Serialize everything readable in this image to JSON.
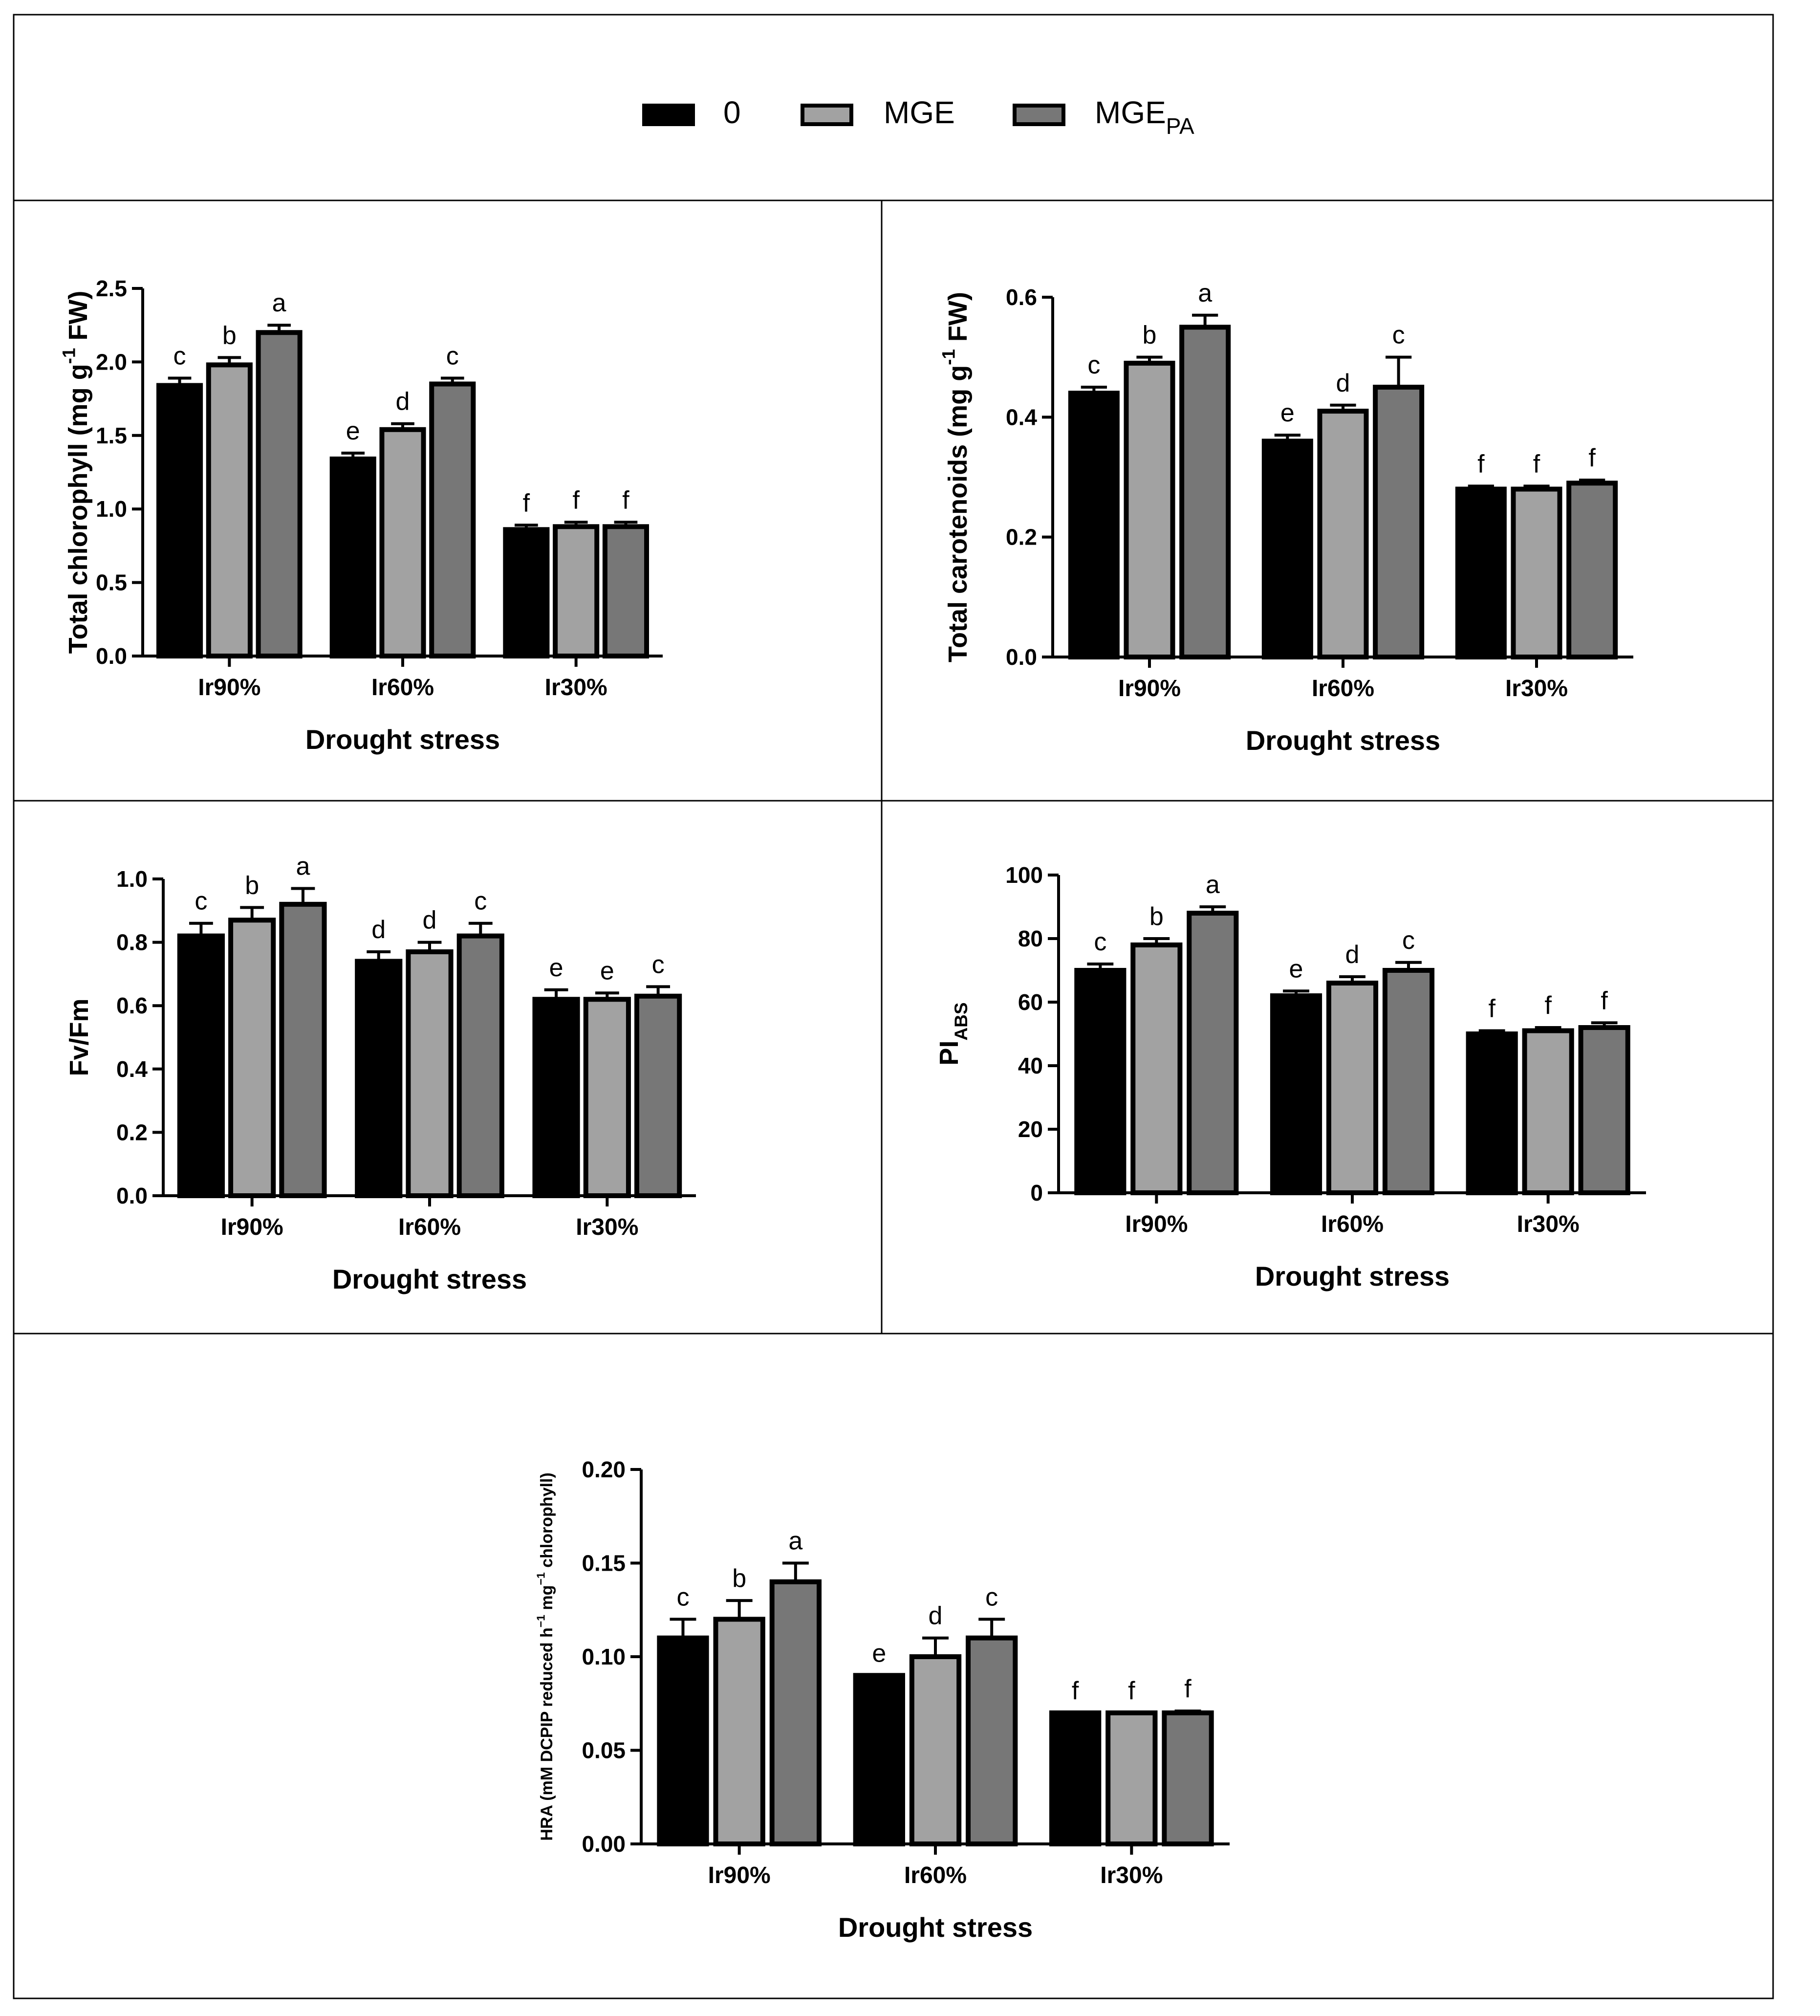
{
  "legend": {
    "items": [
      {
        "label": "0",
        "color": "#000000"
      },
      {
        "label": "MGE",
        "color": "#a2a2a2"
      },
      {
        "label": "MGE",
        "subscript": "PA",
        "color": "#777777"
      }
    ]
  },
  "chart_data": [
    {
      "type": "bar",
      "ylabel_main": "Total chlorophyll (mg g",
      "ylabel_sup": "-1",
      "ylabel_end": " FW)",
      "xlabel": "Drought stress",
      "categories": [
        "Ir90%",
        "Ir60%",
        "Ir30%"
      ],
      "ylim": [
        0,
        2.5
      ],
      "yticks": [
        "0.0",
        "0.5",
        "1.0",
        "1.5",
        "2.0",
        "2.5"
      ],
      "series": [
        {
          "name": "0",
          "values": [
            1.84,
            1.34,
            0.86
          ],
          "errors": [
            0.05,
            0.04,
            0.03
          ],
          "letters": [
            "c",
            "e",
            "f"
          ]
        },
        {
          "name": "MGE",
          "values": [
            1.98,
            1.54,
            0.88
          ],
          "errors": [
            0.05,
            0.04,
            0.03
          ],
          "letters": [
            "b",
            "d",
            "f"
          ]
        },
        {
          "name": "MGE_PA",
          "values": [
            2.2,
            1.85,
            0.88
          ],
          "errors": [
            0.05,
            0.04,
            0.03
          ],
          "letters": [
            "a",
            "c",
            "f"
          ]
        }
      ]
    },
    {
      "type": "bar",
      "ylabel_main": "Total carotenoids (mg g",
      "ylabel_sup": "-1",
      "ylabel_end": " FW)",
      "xlabel": "Drought stress",
      "categories": [
        "Ir90%",
        "Ir60%",
        "Ir30%"
      ],
      "ylim": [
        0,
        0.6
      ],
      "yticks": [
        "0.0",
        "0.2",
        "0.4",
        "0.6"
      ],
      "series": [
        {
          "name": "0",
          "values": [
            0.44,
            0.36,
            0.28
          ],
          "errors": [
            0.01,
            0.01,
            0.005
          ],
          "letters": [
            "c",
            "e",
            "f"
          ]
        },
        {
          "name": "MGE",
          "values": [
            0.49,
            0.41,
            0.28
          ],
          "errors": [
            0.01,
            0.01,
            0.005
          ],
          "letters": [
            "b",
            "d",
            "f"
          ]
        },
        {
          "name": "MGE_PA",
          "values": [
            0.55,
            0.45,
            0.29
          ],
          "errors": [
            0.02,
            0.05,
            0.005
          ],
          "letters": [
            "a",
            "c",
            "f"
          ]
        }
      ]
    },
    {
      "type": "bar",
      "ylabel_main": "Fv/Fm",
      "xlabel": "Drought stress",
      "categories": [
        "Ir90%",
        "Ir60%",
        "Ir30%"
      ],
      "ylim": [
        0,
        1.0
      ],
      "yticks": [
        "0.0",
        "0.2",
        "0.4",
        "0.6",
        "0.8",
        "1.0"
      ],
      "series": [
        {
          "name": "0",
          "values": [
            0.82,
            0.74,
            0.62
          ],
          "errors": [
            0.04,
            0.03,
            0.03
          ],
          "letters": [
            "c",
            "d",
            "e"
          ]
        },
        {
          "name": "MGE",
          "values": [
            0.87,
            0.77,
            0.62
          ],
          "errors": [
            0.04,
            0.03,
            0.02
          ],
          "letters": [
            "b",
            "d",
            "e"
          ]
        },
        {
          "name": "MGE_PA",
          "values": [
            0.92,
            0.82,
            0.63
          ],
          "errors": [
            0.05,
            0.04,
            0.03
          ],
          "letters": [
            "a",
            "c",
            "c"
          ]
        }
      ]
    },
    {
      "type": "bar",
      "ylabel_main": "PI",
      "ylabel_sub": "ABS",
      "xlabel": "Drought stress",
      "categories": [
        "Ir90%",
        "Ir60%",
        "Ir30%"
      ],
      "ylim": [
        0,
        100
      ],
      "yticks": [
        "0",
        "20",
        "40",
        "60",
        "80",
        "100"
      ],
      "series": [
        {
          "name": "0",
          "values": [
            70,
            62,
            50
          ],
          "errors": [
            2,
            1.5,
            1
          ],
          "letters": [
            "c",
            "e",
            "f"
          ]
        },
        {
          "name": "MGE",
          "values": [
            78,
            66,
            51
          ],
          "errors": [
            2,
            2,
            1
          ],
          "letters": [
            "b",
            "d",
            "f"
          ]
        },
        {
          "name": "MGE_PA",
          "values": [
            88,
            70,
            52
          ],
          "errors": [
            2,
            2.5,
            1.5
          ],
          "letters": [
            "a",
            "c",
            "f"
          ]
        }
      ]
    },
    {
      "type": "bar",
      "ylabel_main": "HRA (mM DCPIP reduced h",
      "ylabel_sup": "−1",
      "ylabel_mid": " mg",
      "ylabel_sup2": "−1",
      "ylabel_end": " chlorophyll)",
      "xlabel": "Drought stress",
      "categories": [
        "Ir90%",
        "Ir60%",
        "Ir30%"
      ],
      "ylim": [
        0,
        0.2
      ],
      "yticks": [
        "0.00",
        "0.05",
        "0.10",
        "0.15",
        "0.20"
      ],
      "series": [
        {
          "name": "0",
          "values": [
            0.11,
            0.09,
            0.07
          ],
          "errors": [
            0.01,
            0.0,
            0.0
          ],
          "letters": [
            "c",
            "e",
            "f"
          ]
        },
        {
          "name": "MGE",
          "values": [
            0.12,
            0.1,
            0.07
          ],
          "errors": [
            0.01,
            0.01,
            0.0
          ],
          "letters": [
            "b",
            "d",
            "f"
          ]
        },
        {
          "name": "MGE_PA",
          "values": [
            0.14,
            0.11,
            0.07
          ],
          "errors": [
            0.01,
            0.01,
            0.001
          ],
          "letters": [
            "a",
            "c",
            "f"
          ]
        }
      ]
    }
  ]
}
